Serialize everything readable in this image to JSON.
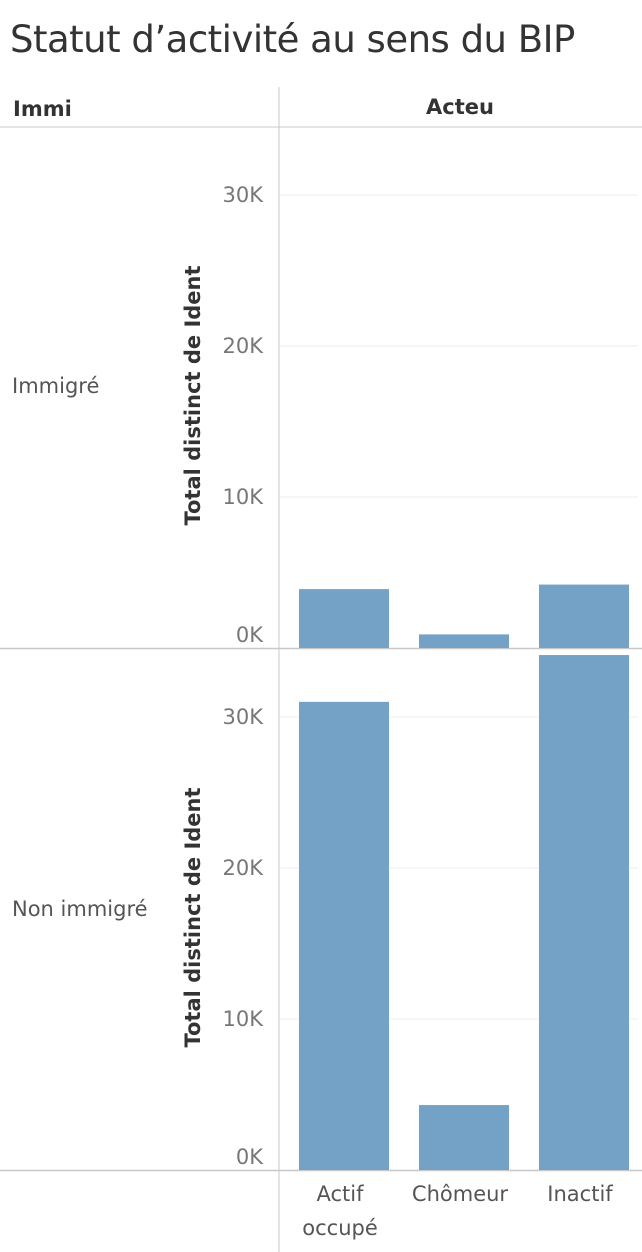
{
  "title": "Statut d’activité au sens du BIP",
  "row_header": "Immi",
  "column_header": "Acteu",
  "colors": {
    "bar": "#74a2c7",
    "grid": "#ececec",
    "border": "#c8c8c8"
  },
  "chart_data": {
    "type": "bar",
    "categories": [
      "Actif occupé",
      "Chômeur",
      "Inactif"
    ],
    "category_lines": [
      [
        "Actif",
        "occupé"
      ],
      [
        "Chômeur"
      ],
      [
        "Inactif"
      ]
    ],
    "ylabel": "Total distinct de Ident",
    "ylim": [
      0,
      34500
    ],
    "yticks": [
      0,
      10000,
      20000,
      30000
    ],
    "ytick_labels": [
      "0K",
      "10K",
      "20K",
      "30K"
    ],
    "grid": true,
    "panels": [
      {
        "name": "Immigré",
        "values": [
          3900,
          900,
          4200
        ]
      },
      {
        "name": "Non immigré",
        "values": [
          31000,
          4300,
          34100
        ]
      }
    ]
  }
}
